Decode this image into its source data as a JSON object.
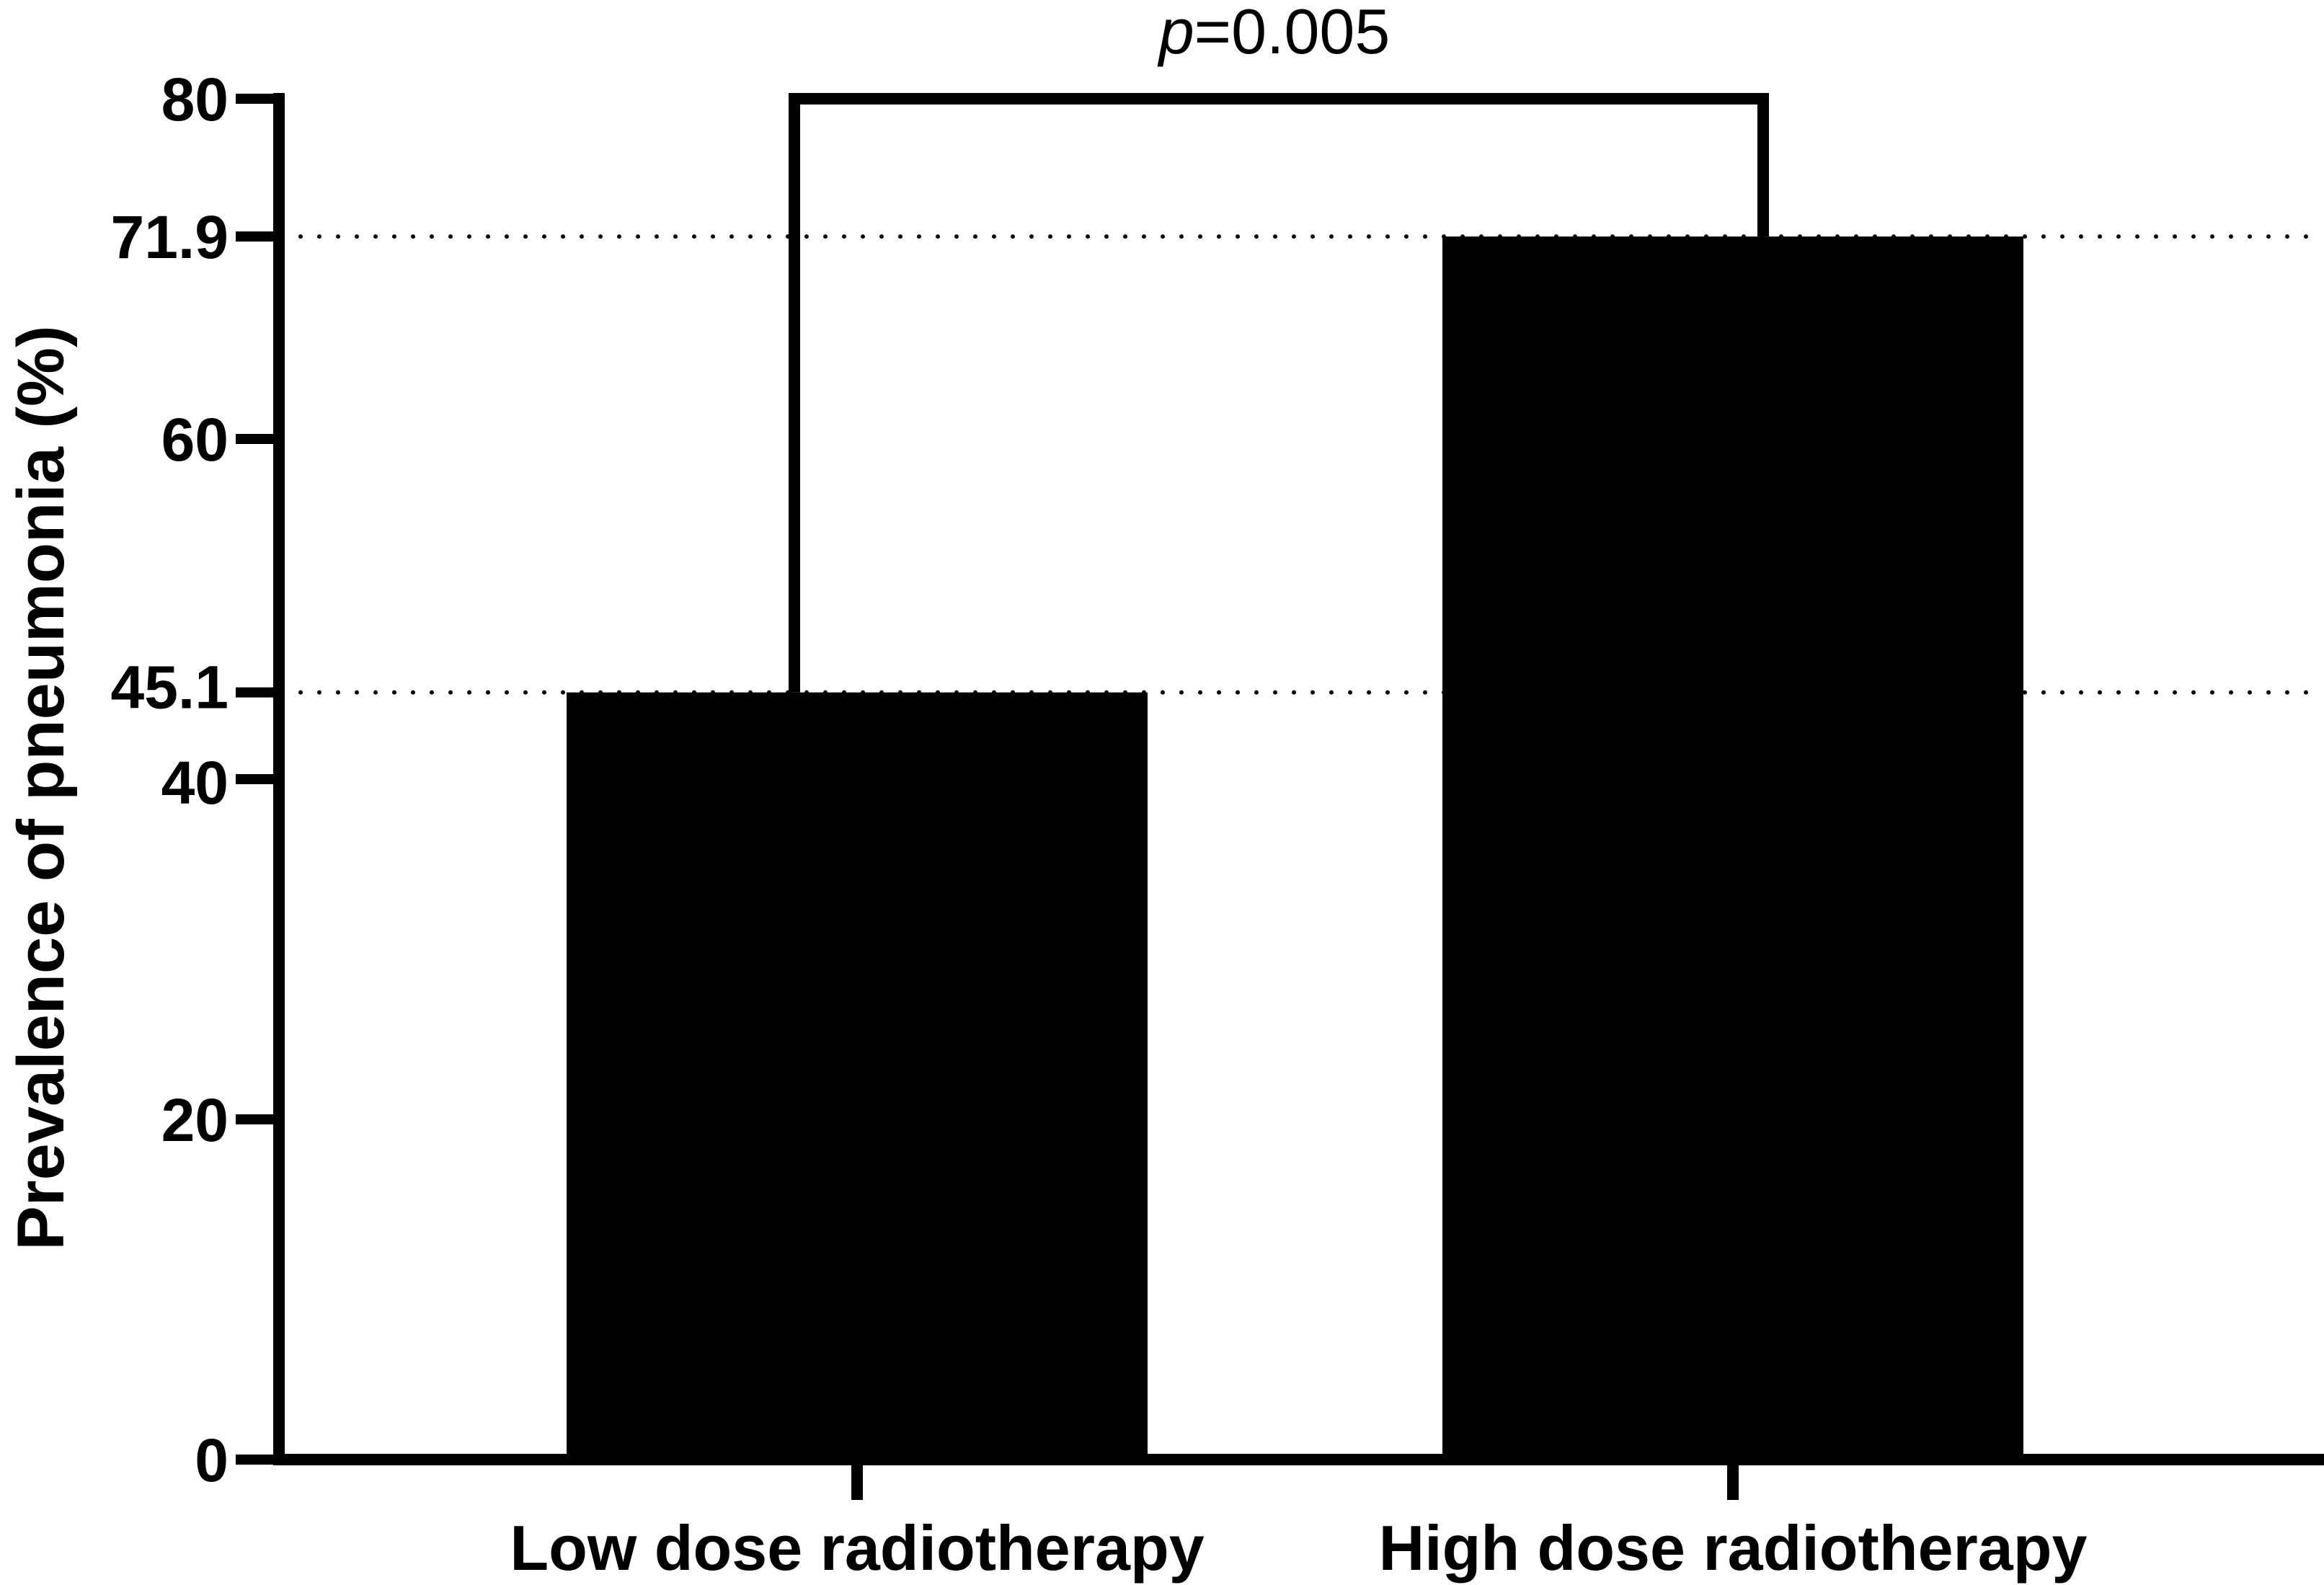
{
  "chart_data": {
    "type": "bar",
    "categories": [
      "Low dose radiotherapy",
      "High dose radiotherapy"
    ],
    "values": [
      45.1,
      71.9
    ],
    "ylabel": "Prevalence of pneumonia (%)",
    "xlabel": "",
    "ylim": [
      0,
      80
    ],
    "yticks": [
      0,
      20,
      40,
      45.1,
      60,
      71.9,
      80
    ],
    "ytick_labels": [
      "0",
      "20",
      "40",
      "45.1",
      "60",
      "71.9",
      "80"
    ],
    "reference_lines": [
      45.1,
      71.9
    ],
    "annotation": {
      "prefix": "p",
      "text": "=0.005"
    },
    "bar_color": "#000000",
    "grid": false,
    "legend": "none"
  }
}
